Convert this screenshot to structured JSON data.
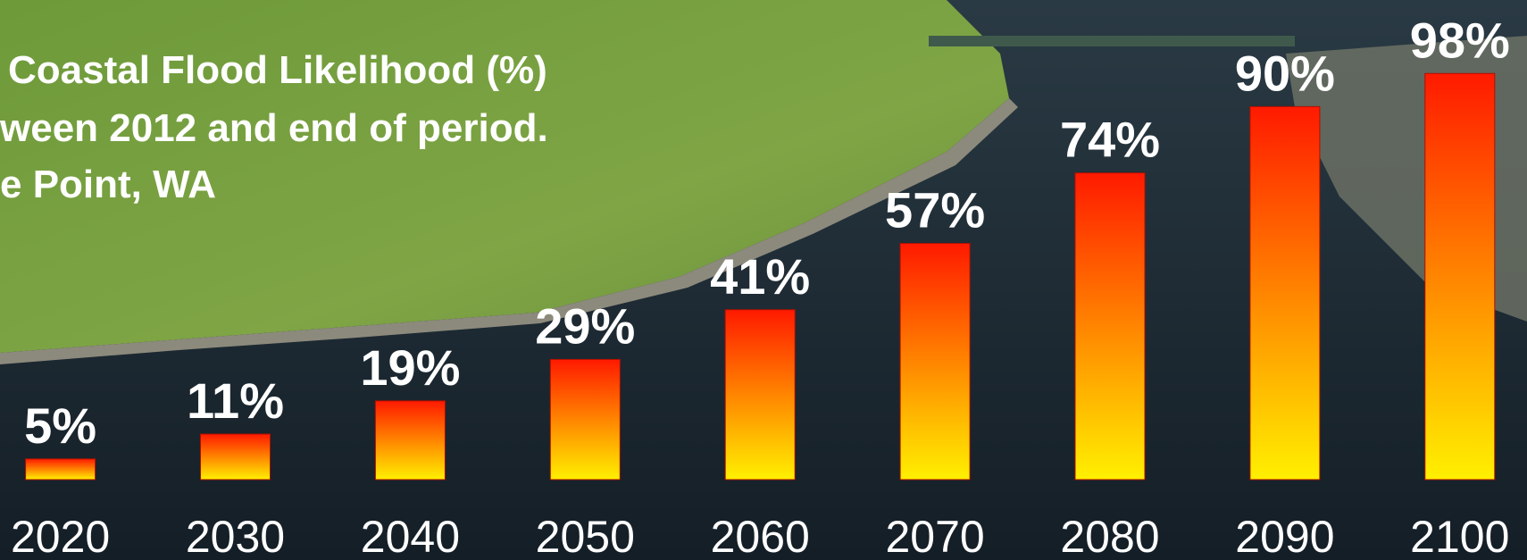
{
  "chart_data": {
    "type": "bar",
    "title_lines": [
      "Coastal Flood Likelihood (%)",
      "ween 2012 and end of period.",
      "e Point, WA"
    ],
    "categories": [
      "2020",
      "2030",
      "2040",
      "2050",
      "2060",
      "2070",
      "2080",
      "2090",
      "2100"
    ],
    "values": [
      5,
      11,
      19,
      29,
      41,
      57,
      74,
      90,
      98
    ],
    "value_labels": [
      "5%",
      "11%",
      "19%",
      "29%",
      "41%",
      "57%",
      "74%",
      "90%",
      "98%"
    ],
    "color_top": "#ff1a00",
    "color_bottom": "#fff000"
  }
}
